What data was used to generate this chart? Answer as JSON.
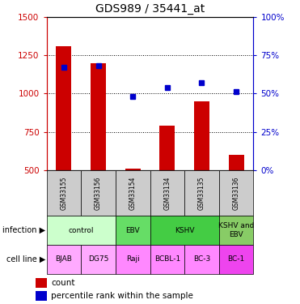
{
  "title": "GDS989 / 35441_at",
  "samples": [
    "GSM33155",
    "GSM33156",
    "GSM33154",
    "GSM33134",
    "GSM33135",
    "GSM33136"
  ],
  "counts": [
    1310,
    1195,
    510,
    790,
    950,
    600
  ],
  "percentiles": [
    67,
    68,
    48,
    54,
    57,
    51
  ],
  "ylim_left": [
    500,
    1500
  ],
  "ylim_right": [
    0,
    100
  ],
  "yticks_left": [
    500,
    750,
    1000,
    1250,
    1500
  ],
  "yticks_right": [
    0,
    25,
    50,
    75,
    100
  ],
  "bar_color": "#cc0000",
  "dot_color": "#0000cc",
  "bar_bottom": 500,
  "infection_groups": [
    {
      "label": "control",
      "cols": [
        0,
        1
      ],
      "color": "#ccffcc"
    },
    {
      "label": "EBV",
      "cols": [
        2
      ],
      "color": "#66dd66"
    },
    {
      "label": "KSHV",
      "cols": [
        3,
        4
      ],
      "color": "#44cc44"
    },
    {
      "label": "KSHV and\nEBV",
      "cols": [
        5
      ],
      "color": "#88cc66"
    }
  ],
  "cell_lines": [
    "BJAB",
    "DG75",
    "Raji",
    "BCBL-1",
    "BC-3",
    "BC-1"
  ],
  "cell_colors": [
    "#ffaaff",
    "#ffaaff",
    "#ff88ff",
    "#ff88ff",
    "#ff88ff",
    "#ee44ee"
  ],
  "legend_count_color": "#cc0000",
  "legend_pct_color": "#0000cc",
  "left_tick_color": "#cc0000",
  "right_tick_color": "#0000cc"
}
